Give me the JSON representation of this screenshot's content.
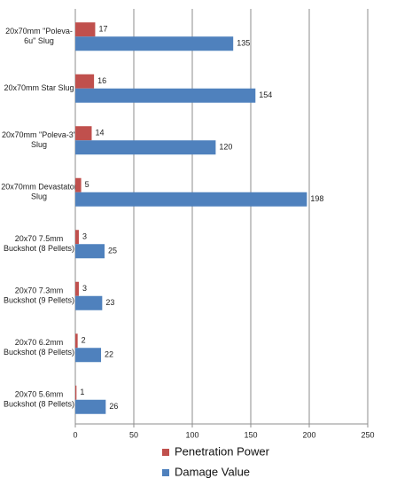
{
  "chart_data": {
    "type": "bar",
    "orientation": "horizontal",
    "categories": [
      [
        "20x70mm \"Poleva-",
        "6u\" Slug"
      ],
      [
        "20x70mm Star Slug"
      ],
      [
        "20x70mm \"Poleva-3\"",
        "Slug"
      ],
      [
        "20x70mm Devastator",
        "Slug"
      ],
      [
        "20x70 7.5mm",
        "Buckshot (8 Pellets)"
      ],
      [
        "20x70 7.3mm",
        "Buckshot (9 Pellets)"
      ],
      [
        "20x70 6.2mm",
        "Buckshot (8 Pellets)"
      ],
      [
        "20x70 5.6mm",
        "Buckshot (8 Pellets)"
      ]
    ],
    "series": [
      {
        "name": "Penetration Power",
        "color": "#c0504d",
        "values": [
          17,
          16,
          14,
          5,
          3,
          3,
          2,
          1
        ]
      },
      {
        "name": "Damage Value",
        "color": "#4f81bd",
        "values": [
          135,
          154,
          120,
          198,
          25,
          23,
          22,
          26
        ]
      }
    ],
    "xlim": [
      0,
      250
    ],
    "xticks": [
      0,
      50,
      100,
      150,
      200,
      250
    ],
    "grid": true,
    "legend": "bottom"
  }
}
